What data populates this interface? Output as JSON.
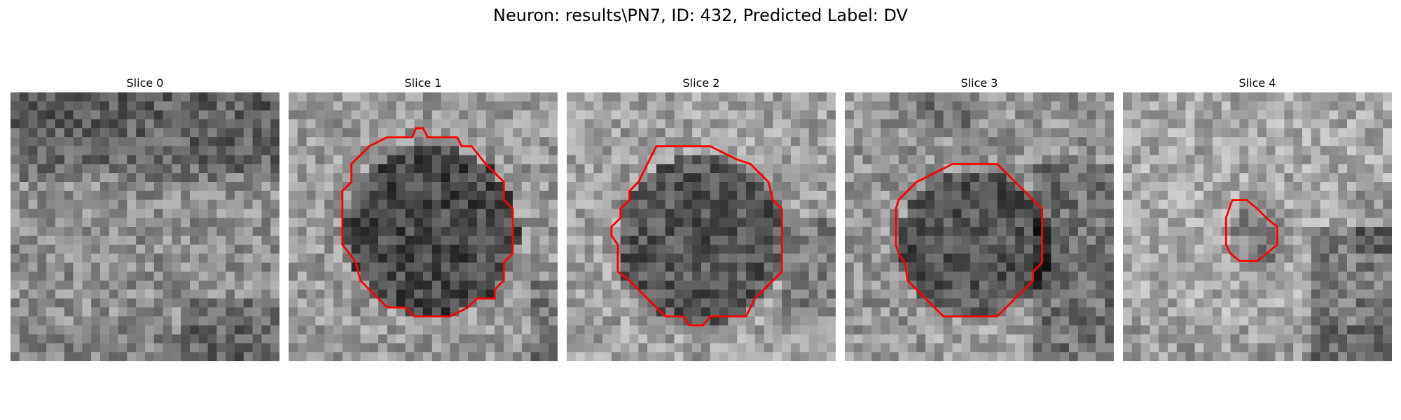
{
  "figure": {
    "title": "Neuron: results\\PN7, ID: 432, Predicted Label: DV",
    "contour_color": "#ff0000"
  },
  "panels": [
    {
      "title": "Slice 0",
      "has_contour": false
    },
    {
      "title": "Slice 1",
      "has_contour": true
    },
    {
      "title": "Slice 2",
      "has_contour": true
    },
    {
      "title": "Slice 3",
      "has_contour": true
    },
    {
      "title": "Slice 4",
      "has_contour": true
    }
  ]
}
